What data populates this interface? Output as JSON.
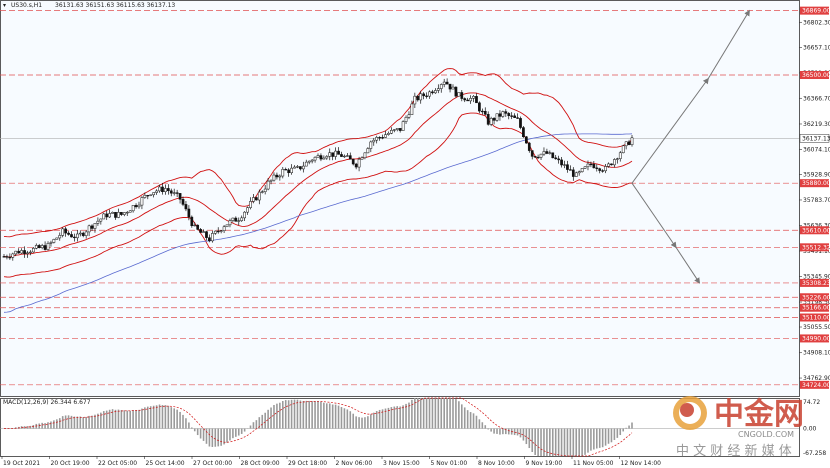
{
  "header": {
    "symbol": "US30.s,H1",
    "ohlc": "36131.63 36151.63 36115.63 36137.13"
  },
  "chart_data": {
    "type": "candlestick",
    "symbol": "US30.s",
    "timeframe": "H1",
    "ylim": [
      34660,
      36930
    ],
    "price_ticks": [
      "36802.30",
      "36657.10",
      "36511.90",
      "36366.70",
      "36219.30",
      "36074.10",
      "35928.90",
      "35783.70",
      "35636.30",
      "35491.10",
      "35345.90",
      "35198.50",
      "35055.50",
      "34908.10",
      "34762.90"
    ],
    "current_price": "36137.13",
    "levels": [
      {
        "price": 36869.0,
        "label": "36869.00"
      },
      {
        "price": 36500.0,
        "label": "36500.00"
      },
      {
        "price": 35880.0,
        "label": "35880.00"
      },
      {
        "price": 35610.0,
        "label": "35610.00"
      },
      {
        "price": 35512.32,
        "label": "35512.32"
      },
      {
        "price": 35308.23,
        "label": "35308.23"
      },
      {
        "price": 35226.0,
        "label": "35226.00"
      },
      {
        "price": 35166.0,
        "label": "35166.00"
      },
      {
        "price": 35110.0,
        "label": "35110.00"
      },
      {
        "price": 34990.0,
        "label": "34990.00"
      },
      {
        "price": 34724.0,
        "label": "34724.00"
      }
    ],
    "x_labels": [
      "19 Oct 2021",
      "20 Oct 19:00",
      "22 Oct 05:00",
      "25 Oct 14:00",
      "27 Oct 00:00",
      "28 Oct 09:00",
      "29 Oct 18:00",
      "2 Nov 06:00",
      "3 Nov 15:00",
      "5 Nov 01:00",
      "8 Nov 10:00",
      "9 Nov 19:00",
      "11 Nov 05:00",
      "12 Nov 14:00"
    ],
    "close_path": [
      {
        "t": 0,
        "p": 35460
      },
      {
        "t": 5,
        "p": 35490
      },
      {
        "t": 10,
        "p": 35500
      },
      {
        "t": 15,
        "p": 35520
      },
      {
        "t": 20,
        "p": 35600
      },
      {
        "t": 25,
        "p": 35570
      },
      {
        "t": 30,
        "p": 35640
      },
      {
        "t": 35,
        "p": 35700
      },
      {
        "t": 40,
        "p": 35700
      },
      {
        "t": 45,
        "p": 35760
      },
      {
        "t": 50,
        "p": 35830
      },
      {
        "t": 55,
        "p": 35850
      },
      {
        "t": 60,
        "p": 35790
      },
      {
        "t": 65,
        "p": 35620
      },
      {
        "t": 70,
        "p": 35560
      },
      {
        "t": 75,
        "p": 35640
      },
      {
        "t": 80,
        "p": 35680
      },
      {
        "t": 85,
        "p": 35780
      },
      {
        "t": 90,
        "p": 35880
      },
      {
        "t": 95,
        "p": 35950
      },
      {
        "t": 100,
        "p": 35960
      },
      {
        "t": 105,
        "p": 36020
      },
      {
        "t": 110,
        "p": 36050
      },
      {
        "t": 115,
        "p": 36040
      },
      {
        "t": 120,
        "p": 35990
      },
      {
        "t": 125,
        "p": 36120
      },
      {
        "t": 130,
        "p": 36160
      },
      {
        "t": 135,
        "p": 36190
      },
      {
        "t": 140,
        "p": 36360
      },
      {
        "t": 145,
        "p": 36400
      },
      {
        "t": 150,
        "p": 36470
      },
      {
        "t": 155,
        "p": 36380
      },
      {
        "t": 160,
        "p": 36360
      },
      {
        "t": 165,
        "p": 36230
      },
      {
        "t": 170,
        "p": 36280
      },
      {
        "t": 175,
        "p": 36240
      },
      {
        "t": 180,
        "p": 36040
      },
      {
        "t": 185,
        "p": 36050
      },
      {
        "t": 190,
        "p": 35990
      },
      {
        "t": 195,
        "p": 35920
      },
      {
        "t": 200,
        "p": 35990
      },
      {
        "t": 205,
        "p": 35960
      },
      {
        "t": 210,
        "p": 36060
      },
      {
        "t": 214,
        "p": 36137
      }
    ],
    "projection": [
      {
        "from": {
          "t": 214,
          "p": 35880
        },
        "to": {
          "t": 240,
          "p": 36480
        }
      },
      {
        "from": {
          "t": 240,
          "p": 36480
        },
        "to": {
          "t": 254,
          "p": 36869
        }
      },
      {
        "from": {
          "t": 214,
          "p": 35880
        },
        "to": {
          "t": 229,
          "p": 35512
        }
      },
      {
        "from": {
          "t": 229,
          "p": 35512
        },
        "to": {
          "t": 237,
          "p": 35308
        }
      }
    ],
    "macd": {
      "label": "MACD(12,26,9) 26.344 6.677",
      "ticks": [
        "74.72",
        "0.00",
        "-67.258"
      ],
      "ylim": [
        -67.258,
        74.72
      ]
    }
  },
  "watermark": {
    "brand": "中金网",
    "url": "CNGOLD.COM",
    "tagline": "中 文 财 经 新 媒 体"
  }
}
